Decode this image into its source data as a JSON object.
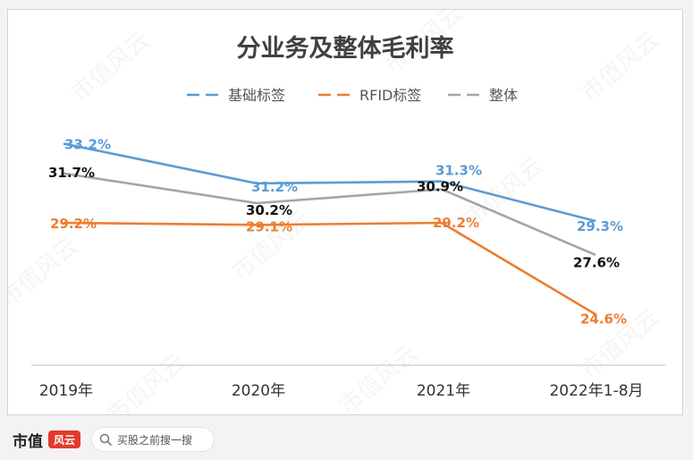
{
  "chart_data": {
    "type": "line",
    "title": "分业务及整体毛利率",
    "categories": [
      "2019年",
      "2020年",
      "2021年",
      "2022年1-8月"
    ],
    "series": [
      {
        "name": "基础标签",
        "values": [
          33.2,
          31.2,
          31.3,
          29.3
        ],
        "labels": [
          "33.2%",
          "31.2%",
          "31.3%",
          "29.3%"
        ],
        "color": "#5b9bd5"
      },
      {
        "name": "RFID标签",
        "values": [
          29.2,
          29.1,
          29.2,
          24.6
        ],
        "labels": [
          "29.2%",
          "29.1%",
          "29.2%",
          "24.6%"
        ],
        "color": "#ed7d31"
      },
      {
        "name": "整体",
        "values": [
          31.7,
          30.2,
          30.9,
          27.6
        ],
        "labels": [
          "31.7%",
          "30.2%",
          "30.9%",
          "27.6%"
        ],
        "color": "#a5a5a5"
      }
    ],
    "ylim": [
      22.0,
      35.0
    ],
    "grid": false,
    "legend": "top-center"
  },
  "watermark": "市值风云",
  "footer": {
    "brand": "市值",
    "logo": "风云",
    "search_placeholder": "买股之前搜一搜"
  }
}
